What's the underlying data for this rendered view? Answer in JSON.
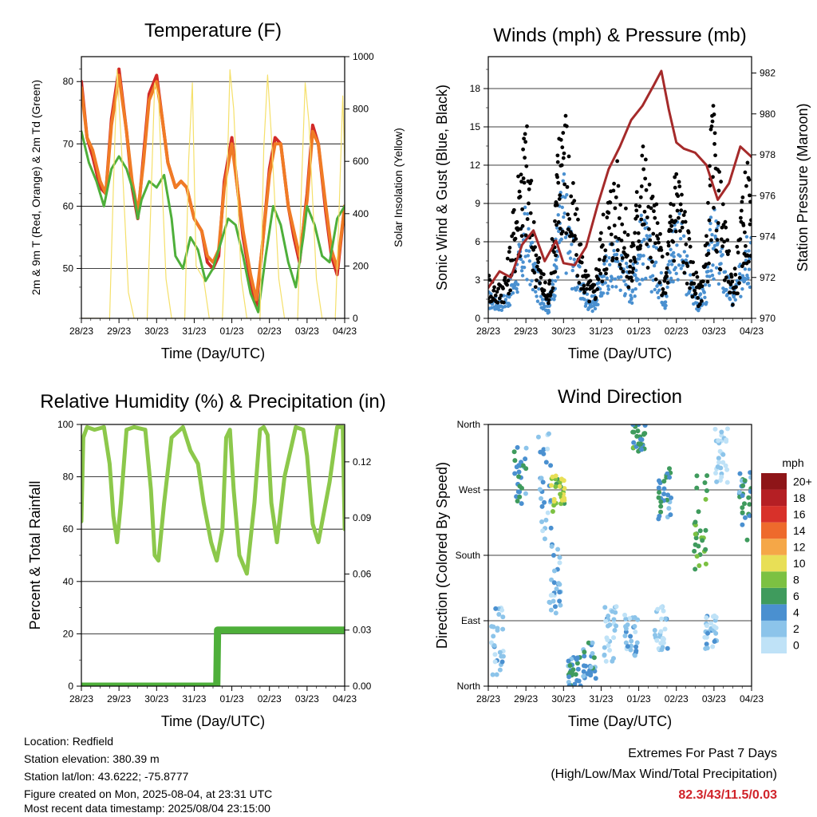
{
  "footer": {
    "location": "Location: Redfield",
    "elevation": "Station elevation: 380.39 m",
    "latlon": "Station lat/lon: 43.6222; -75.8777",
    "created": "Figure created on Mon, 2025-08-04, at 23:31 UTC",
    "timestamp": "Most recent data timestamp: 2025/08/04 23:15:00",
    "extremes_title": "Extremes For Past 7 Days",
    "extremes_sub": "(High/Low/Max Wind/Total Precipitation)",
    "extremes_values": "82.3/43/11.5/0.03",
    "extremes_color": "#d0232a"
  },
  "chart_data": [
    {
      "type": "line",
      "title": "Temperature (F)",
      "xlabel": "Time (Day/UTC)",
      "ylabel": "2m & 9m T (Red, Orange) & 2m Td (Green)",
      "ylabel_right": "Solar Insolation (Yellow)",
      "x_ticks": [
        "28/23",
        "29/23",
        "30/23",
        "31/23",
        "01/23",
        "02/23",
        "03/23",
        "04/23"
      ],
      "ylim": [
        42,
        84
      ],
      "y_ticks": [
        50,
        60,
        70,
        80
      ],
      "y2lim": [
        0,
        1000
      ],
      "y2_ticks": [
        0,
        200,
        400,
        600,
        800,
        1000
      ],
      "grid": "horizontal",
      "series": [
        {
          "name": "2m T",
          "color": "#d22a27",
          "axis": "left",
          "x": [
            0,
            0.15,
            0.3,
            0.5,
            0.65,
            0.8,
            1.0,
            1.2,
            1.35,
            1.5,
            1.65,
            1.8,
            2.0,
            2.15,
            2.3,
            2.5,
            2.65,
            2.8,
            3.0,
            3.2,
            3.35,
            3.5,
            3.65,
            3.8,
            4.0,
            4.15,
            4.3,
            4.5,
            4.65,
            4.8,
            5.0,
            5.15,
            5.3,
            5.5,
            5.65,
            5.8,
            6.0,
            6.15,
            6.3,
            6.5,
            6.65,
            6.8,
            7.0
          ],
          "y": [
            80,
            71,
            68,
            63,
            62,
            74,
            82,
            72,
            63,
            58,
            68,
            78,
            81,
            74,
            67,
            63,
            64,
            63,
            58,
            56,
            51,
            50,
            52,
            64,
            71,
            63,
            55,
            48,
            44,
            53,
            66,
            71,
            70,
            60,
            55,
            51,
            62,
            73,
            70,
            59,
            52,
            49,
            60
          ]
        },
        {
          "name": "9m T",
          "color": "#f07b25",
          "axis": "left",
          "x": [
            0,
            0.15,
            0.3,
            0.5,
            0.65,
            0.8,
            1.0,
            1.2,
            1.35,
            1.5,
            1.65,
            1.8,
            2.0,
            2.15,
            2.3,
            2.5,
            2.65,
            2.8,
            3.0,
            3.2,
            3.35,
            3.5,
            3.65,
            3.8,
            4.0,
            4.15,
            4.3,
            4.5,
            4.65,
            4.8,
            5.0,
            5.15,
            5.3,
            5.5,
            5.65,
            5.8,
            6.0,
            6.15,
            6.3,
            6.5,
            6.65,
            6.8,
            7.0
          ],
          "y": [
            79,
            71,
            69,
            64,
            62,
            73,
            81,
            72,
            64,
            59,
            67,
            77,
            80,
            74,
            67,
            63,
            64,
            63,
            58,
            56,
            52,
            51,
            53,
            63,
            70,
            63,
            56,
            49,
            45,
            53,
            65,
            70,
            70,
            60,
            56,
            52,
            61,
            72,
            70,
            60,
            53,
            50,
            60
          ]
        },
        {
          "name": "2m Td",
          "color": "#4eaf3a",
          "axis": "left",
          "x": [
            0,
            0.2,
            0.4,
            0.6,
            0.8,
            1.0,
            1.2,
            1.4,
            1.5,
            1.6,
            1.8,
            2.0,
            2.2,
            2.4,
            2.5,
            2.7,
            2.9,
            3.1,
            3.3,
            3.5,
            3.7,
            3.9,
            4.1,
            4.3,
            4.5,
            4.7,
            4.9,
            5.1,
            5.3,
            5.5,
            5.7,
            5.9,
            6.0,
            6.2,
            6.4,
            6.6,
            6.8,
            7.0
          ],
          "y": [
            72,
            67,
            64,
            60,
            66,
            68,
            66,
            62,
            58,
            61,
            64,
            63,
            65,
            58,
            52,
            50,
            55,
            53,
            48,
            50,
            54,
            58,
            57,
            52,
            46,
            43,
            52,
            60,
            57,
            51,
            47,
            55,
            60,
            57,
            52,
            51,
            58,
            60
          ]
        },
        {
          "name": "Solar Insolation",
          "color": "#f5e06a",
          "axis": "right",
          "x": [
            0,
            0.3,
            0.45,
            0.6,
            0.75,
            0.85,
            0.95,
            1.05,
            1.25,
            1.4,
            1.55,
            1.75,
            1.85,
            1.95,
            2.05,
            2.25,
            2.4,
            2.55,
            2.75,
            2.85,
            2.95,
            3.05,
            3.25,
            3.4,
            3.55,
            3.75,
            3.85,
            3.95,
            4.05,
            4.25,
            4.4,
            4.55,
            4.75,
            4.85,
            4.95,
            5.05,
            5.25,
            5.4,
            5.55,
            5.75,
            5.85,
            5.95,
            6.05,
            6.25,
            6.4,
            6.55,
            6.75,
            6.85,
            6.95,
            7.0
          ],
          "y": [
            0,
            0,
            0,
            0,
            0,
            500,
            950,
            700,
            100,
            0,
            0,
            0,
            450,
            900,
            850,
            150,
            0,
            0,
            0,
            600,
            900,
            200,
            150,
            0,
            0,
            0,
            400,
            950,
            800,
            150,
            0,
            0,
            0,
            650,
            930,
            700,
            150,
            0,
            0,
            0,
            500,
            900,
            750,
            150,
            0,
            0,
            0,
            400,
            850,
            600
          ]
        }
      ]
    },
    {
      "type": "scatter",
      "title": "Winds (mph) & Pressure (mb)",
      "xlabel": "Time (Day/UTC)",
      "ylabel": "Sonic Wind & Gust (Blue, Black)",
      "ylabel_right": "Station Pressure (Maroon)",
      "x_ticks": [
        "28/23",
        "29/23",
        "30/23",
        "31/23",
        "01/23",
        "02/23",
        "03/23",
        "04/23"
      ],
      "ylim": [
        0,
        20.5
      ],
      "y_ticks": [
        0,
        3,
        6,
        9,
        12,
        15,
        18
      ],
      "y2lim": [
        970,
        982.8
      ],
      "y2_ticks": [
        970,
        972,
        974,
        976,
        978,
        980,
        982
      ],
      "grid": "horizontal",
      "series": [
        {
          "name": "Sonic Wind",
          "color": "#4a90d0",
          "axis": "left",
          "x": [
            0,
            0.25,
            0.5,
            0.7,
            0.85,
            1.0,
            1.2,
            1.4,
            1.6,
            1.75,
            1.85,
            2.0,
            2.2,
            2.4,
            2.6,
            2.8,
            3.0,
            3.2,
            3.4,
            3.6,
            3.8,
            3.95,
            4.1,
            4.3,
            4.5,
            4.7,
            4.85,
            5.0,
            5.2,
            5.4,
            5.6,
            5.8,
            5.95,
            6.1,
            6.3,
            6.5,
            6.7,
            6.85,
            7.0
          ],
          "y": [
            2,
            1.5,
            2,
            4,
            6,
            8.5,
            5,
            2.5,
            1,
            4,
            8,
            11,
            7,
            4,
            2,
            1.5,
            3.5,
            5.5,
            6,
            5,
            3,
            6,
            8,
            6,
            5,
            2,
            6,
            9,
            6,
            3,
            1.5,
            3,
            8.5,
            7,
            4,
            2,
            4,
            8,
            6
          ]
        },
        {
          "name": "Gust",
          "color": "#000000",
          "axis": "left",
          "x": [
            0,
            0.25,
            0.5,
            0.7,
            0.85,
            1.0,
            1.2,
            1.4,
            1.6,
            1.75,
            1.85,
            2.0,
            2.2,
            2.4,
            2.6,
            2.8,
            3.0,
            3.2,
            3.4,
            3.6,
            3.8,
            3.95,
            4.1,
            4.3,
            4.5,
            4.7,
            4.85,
            5.0,
            5.2,
            5.4,
            5.6,
            5.8,
            5.95,
            6.1,
            6.3,
            6.5,
            6.7,
            6.85,
            7.0
          ],
          "y": [
            3.5,
            2.5,
            4,
            9,
            13,
            15.5,
            8,
            4,
            2,
            8,
            13,
            18.5,
            11,
            7,
            3.5,
            2.5,
            7,
            10,
            12,
            9,
            5,
            10,
            14,
            10,
            8,
            3,
            9,
            13,
            9,
            5,
            2.5,
            6,
            16,
            12,
            7,
            3,
            7,
            12,
            10
          ]
        },
        {
          "name": "Station Pressure",
          "color": "#a52a2a",
          "axis": "right",
          "x": [
            0,
            0.3,
            0.6,
            0.9,
            1.2,
            1.5,
            1.8,
            2.0,
            2.3,
            2.6,
            2.9,
            3.2,
            3.5,
            3.8,
            4.1,
            4.4,
            4.6,
            4.8,
            5.0,
            5.2,
            5.5,
            5.8,
            6.1,
            6.4,
            6.7,
            7.0
          ],
          "y": [
            971.5,
            972.3,
            972,
            973.6,
            974.3,
            972.8,
            973.8,
            972.7,
            972.6,
            973.5,
            975.5,
            977.3,
            978.4,
            979.7,
            980.4,
            981.4,
            982.1,
            980.2,
            978.6,
            978.3,
            978.1,
            977.5,
            975.8,
            976.6,
            978.4,
            977.9
          ]
        }
      ]
    },
    {
      "type": "line",
      "title": "Relative Humidity (%) & Precipitation (in)",
      "xlabel": "Time (Day/UTC)",
      "ylabel": "Percent & Total Rainfall",
      "x_ticks": [
        "28/23",
        "29/23",
        "30/23",
        "31/23",
        "01/23",
        "02/23",
        "03/23",
        "04/23"
      ],
      "ylim": [
        0,
        100
      ],
      "y_ticks": [
        0,
        20,
        40,
        60,
        80,
        100
      ],
      "y2lim": [
        0,
        0.14
      ],
      "y2_ticks": [
        "0.00",
        "0.03",
        "0.06",
        "0.09",
        "0.12"
      ],
      "grid": "horizontal",
      "series": [
        {
          "name": "Relative Humidity",
          "color": "#8cc84b",
          "axis": "left",
          "x": [
            0,
            0.05,
            0.15,
            0.35,
            0.6,
            0.75,
            0.85,
            0.95,
            1.05,
            1.2,
            1.4,
            1.7,
            1.85,
            1.95,
            2.05,
            2.2,
            2.4,
            2.7,
            2.9,
            3.1,
            3.25,
            3.45,
            3.6,
            3.75,
            3.85,
            3.95,
            4.05,
            4.2,
            4.4,
            4.6,
            4.75,
            4.85,
            4.95,
            5.05,
            5.2,
            5.4,
            5.7,
            5.9,
            6.0,
            6.15,
            6.3,
            6.6,
            6.8,
            6.95,
            7.0
          ],
          "y": [
            63,
            95,
            99,
            98,
            99,
            85,
            65,
            55,
            70,
            98,
            99,
            98,
            75,
            50,
            48,
            70,
            95,
            99,
            90,
            85,
            70,
            55,
            48,
            60,
            95,
            98,
            75,
            50,
            43,
            70,
            98,
            99,
            96,
            70,
            55,
            80,
            99,
            98,
            88,
            62,
            55,
            78,
            99,
            99,
            60
          ]
        },
        {
          "name": "Total Precipitation",
          "color": "#4eaf3a",
          "axis": "right",
          "x": [
            0,
            3.6,
            3.62,
            7.0
          ],
          "y": [
            0.0,
            0.0,
            0.03,
            0.03
          ]
        }
      ]
    },
    {
      "type": "scatter",
      "title": "Wind Direction",
      "xlabel": "Time (Day/UTC)",
      "ylabel": "Direction (Colored By Speed)",
      "x_ticks": [
        "28/23",
        "29/23",
        "30/23",
        "31/23",
        "01/23",
        "02/23",
        "03/23",
        "04/23"
      ],
      "ylim": [
        0,
        360
      ],
      "y_ticks": [
        "North",
        "East",
        "South",
        "West",
        "North"
      ],
      "grid": "horizontal",
      "colorbar": {
        "title": "mph",
        "labels": [
          "0",
          "2",
          "4",
          "6",
          "8",
          "10",
          "12",
          "14",
          "16",
          "18",
          "20+"
        ],
        "colors": [
          "#bfe2f7",
          "#8cc4ea",
          "#4a90d0",
          "#3f9b5d",
          "#7cc142",
          "#e8df56",
          "#f5a747",
          "#ee6a2c",
          "#d8312a",
          "#b51f24",
          "#8e1518"
        ]
      },
      "clusters": [
        {
          "x_center": 0.25,
          "dir_min": 10,
          "dir_max": 110,
          "speed": 2
        },
        {
          "x_center": 0.85,
          "dir_min": 250,
          "dir_max": 330,
          "speed": 5
        },
        {
          "x_center": 1.5,
          "dir_min": 200,
          "dir_max": 350,
          "speed": 3
        },
        {
          "x_center": 1.85,
          "dir_min": 240,
          "dir_max": 290,
          "speed": 9
        },
        {
          "x_center": 1.75,
          "dir_min": 90,
          "dir_max": 200,
          "speed": 3
        },
        {
          "x_center": 2.3,
          "dir_min": 0,
          "dir_max": 40,
          "speed": 5
        },
        {
          "x_center": 2.7,
          "dir_min": 10,
          "dir_max": 60,
          "speed": 4
        },
        {
          "x_center": 3.25,
          "dir_min": 20,
          "dir_max": 110,
          "speed": 2
        },
        {
          "x_center": 3.8,
          "dir_min": 40,
          "dir_max": 100,
          "speed": 3
        },
        {
          "x_center": 4.0,
          "dir_min": 320,
          "dir_max": 360,
          "speed": 6
        },
        {
          "x_center": 4.7,
          "dir_min": 230,
          "dir_max": 300,
          "speed": 5
        },
        {
          "x_center": 4.6,
          "dir_min": 50,
          "dir_max": 110,
          "speed": 2
        },
        {
          "x_center": 5.65,
          "dir_min": 160,
          "dir_max": 290,
          "speed": 7
        },
        {
          "x_center": 5.9,
          "dir_min": 50,
          "dir_max": 100,
          "speed": 2
        },
        {
          "x_center": 6.85,
          "dir_min": 200,
          "dir_max": 300,
          "speed": 5
        },
        {
          "x_center": 6.2,
          "dir_min": 280,
          "dir_max": 360,
          "speed": 1
        }
      ]
    }
  ]
}
